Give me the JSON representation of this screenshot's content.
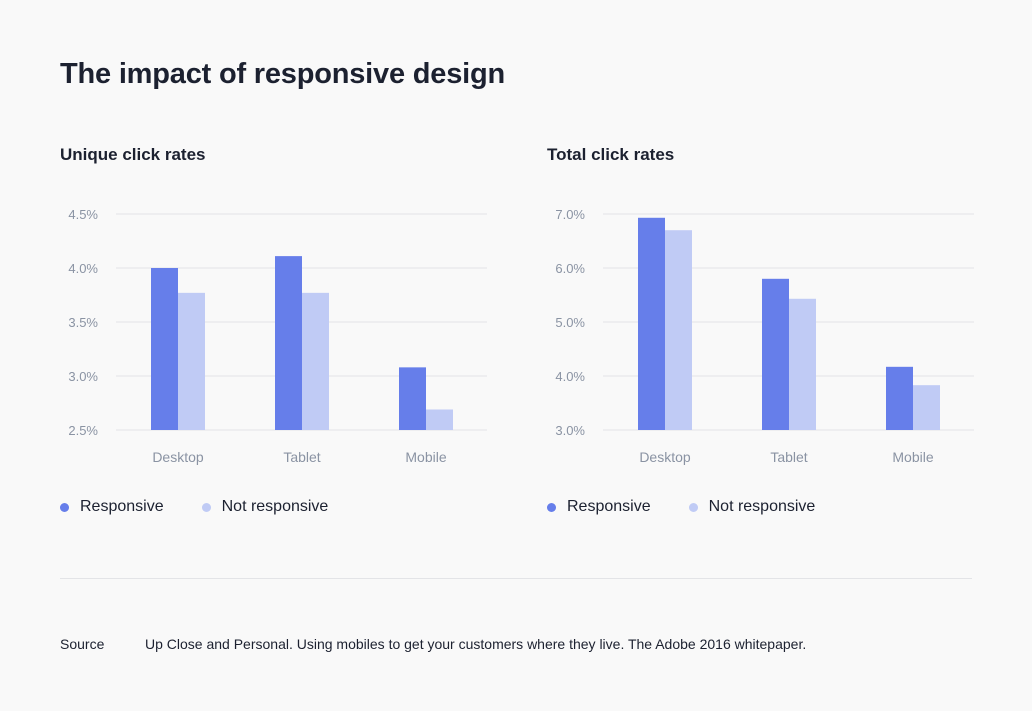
{
  "title": "The impact of responsive design",
  "colors": {
    "responsive": "#667eea",
    "not_responsive": "#c0cbf5",
    "grid": "#e3e4e7",
    "tick": "#8a93a3"
  },
  "chart_data": [
    {
      "type": "bar",
      "title": "Unique click rates",
      "categories": [
        "Desktop",
        "Tablet",
        "Mobile"
      ],
      "series": [
        {
          "name": "Responsive",
          "values": [
            4.0,
            4.11,
            3.08
          ]
        },
        {
          "name": "Not responsive",
          "values": [
            3.77,
            3.77,
            2.69
          ]
        }
      ],
      "yticks": [
        2.5,
        3.0,
        3.5,
        4.0,
        4.5
      ],
      "ytick_labels": [
        "2.5%",
        "3.0%",
        "3.5%",
        "4.0%",
        "4.5%"
      ],
      "ylim": [
        2.5,
        4.5
      ],
      "xlabel": "",
      "ylabel": "",
      "grid": true,
      "legend": "bottom-left"
    },
    {
      "type": "bar",
      "title": "Total click rates",
      "categories": [
        "Desktop",
        "Tablet",
        "Mobile"
      ],
      "series": [
        {
          "name": "Responsive",
          "values": [
            6.93,
            5.8,
            4.17
          ]
        },
        {
          "name": "Not responsive",
          "values": [
            6.7,
            5.43,
            3.83
          ]
        }
      ],
      "yticks": [
        3.0,
        4.0,
        5.0,
        6.0,
        7.0
      ],
      "ytick_labels": [
        "3.0%",
        "4.0%",
        "5.0%",
        "6.0%",
        "7.0%"
      ],
      "ylim": [
        3.0,
        7.0
      ],
      "xlabel": "",
      "ylabel": "",
      "grid": true,
      "legend": "bottom-left"
    }
  ],
  "source": {
    "label": "Source",
    "text": "Up Close and Personal. Using mobiles to get your customers where they live. The Adobe 2016 whitepaper."
  }
}
